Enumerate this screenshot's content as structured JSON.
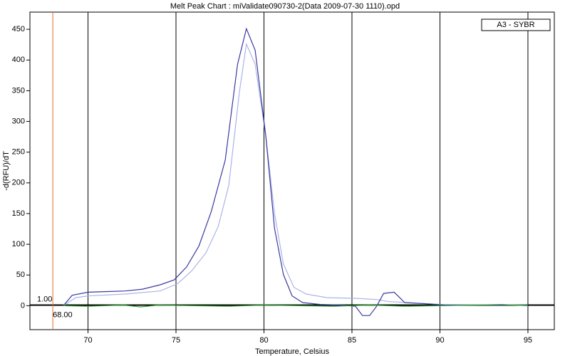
{
  "chart_data": {
    "type": "line",
    "title": "Melt Peak Chart : miValidate090730-2(Data 2009-07-30 1110).opd",
    "x_label": "Temperature, Celsius",
    "y_label": "-d(RFU)/dT",
    "legend": "A3 - SYBR",
    "legend_position": "top-right",
    "xlim": [
      66.7,
      96.5
    ],
    "ylim": [
      -39,
      478
    ],
    "xticks": [
      70,
      75,
      80,
      85,
      90,
      95
    ],
    "yticks": [
      0,
      50,
      100,
      150,
      200,
      250,
      300,
      350,
      400,
      450
    ],
    "grid": true,
    "threshold": {
      "value": 1,
      "label": "1.00"
    },
    "start_line": {
      "value": 68,
      "label": "68.00",
      "color": "#e07030"
    },
    "series": [
      {
        "color": "#aab4e6",
        "x": [
          68.6,
          69.3,
          70,
          72.1,
          74.1,
          75.1,
          75.9,
          76.7,
          77.4,
          78,
          78.6,
          79,
          79.5,
          80.1,
          80.6,
          81.1,
          81.7,
          82.4,
          83.6,
          85.2,
          86.4,
          87,
          88.1,
          90.1,
          95
        ],
        "values": [
          0,
          13,
          16,
          19,
          24,
          36,
          57,
          86,
          129,
          196,
          347,
          426,
          393,
          277,
          150,
          68,
          30,
          19,
          13,
          12,
          10,
          7,
          5,
          2,
          1
        ]
      },
      {
        "color": "#3a3aa0",
        "x": [
          68.6,
          69.1,
          70,
          71.1,
          72.1,
          73.1,
          74.1,
          74.9,
          75.6,
          76.3,
          77,
          77.8,
          78.5,
          79,
          79.5,
          80.1,
          80.6,
          81.1,
          81.6,
          82.2,
          83.2,
          84.4,
          85.2,
          85.6,
          86,
          86.4,
          86.8,
          87.4,
          88,
          89.3,
          90.3,
          93.3,
          95
        ],
        "values": [
          0,
          17,
          22,
          23,
          24,
          27,
          34,
          42,
          63,
          97,
          153,
          237,
          393,
          451,
          416,
          277,
          126,
          51,
          16,
          5,
          2,
          1,
          -1,
          -16,
          -16,
          -1,
          20,
          22,
          5,
          3,
          1,
          1,
          1
        ]
      },
      {
        "color": "#33aa33",
        "x": [
          68.6,
          70,
          72,
          73,
          74,
          76,
          78,
          80,
          82,
          84,
          86,
          88,
          90,
          92,
          93.5,
          95
        ],
        "values": [
          0,
          -1,
          1,
          -2,
          1,
          0,
          -1,
          1,
          0,
          -1,
          1,
          -1,
          0,
          1,
          2,
          0
        ]
      }
    ]
  }
}
